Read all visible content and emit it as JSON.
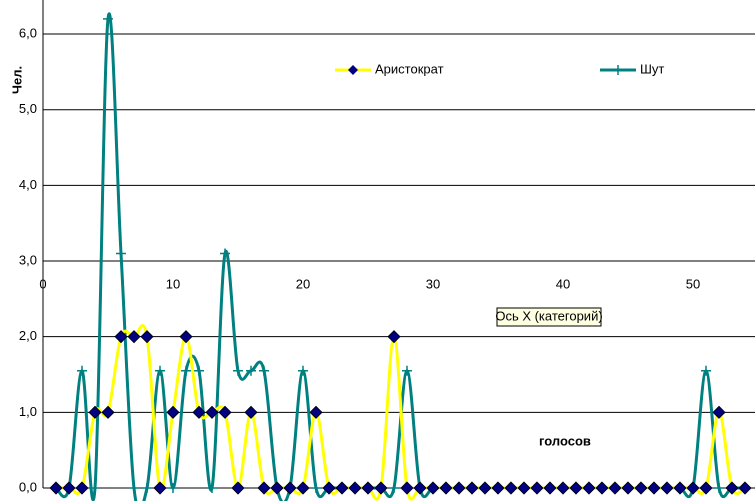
{
  "chart_data": {
    "type": "line",
    "y_label": "Чел.",
    "annotation": "голосов",
    "tooltip": "Ось X (категорий)",
    "x": [
      1,
      2,
      3,
      4,
      5,
      6,
      7,
      8,
      9,
      10,
      11,
      12,
      13,
      14,
      15,
      16,
      17,
      18,
      19,
      20,
      21,
      22,
      23,
      24,
      25,
      26,
      27,
      28,
      29,
      30,
      31,
      32,
      33,
      34,
      35,
      36,
      37,
      38,
      39,
      40,
      41,
      42,
      43,
      44,
      45,
      46,
      47,
      48,
      49,
      50,
      51,
      52,
      53,
      54
    ],
    "series": [
      {
        "name": "Аристократ",
        "color": "#ffff00",
        "marker_color": "#000080",
        "values": [
          0,
          0,
          0,
          1,
          1,
          2,
          2,
          2,
          0,
          1,
          2,
          1,
          1,
          1,
          0,
          1,
          0,
          0,
          0,
          0,
          1,
          0,
          0,
          0,
          0,
          0,
          2,
          0,
          0,
          0,
          0,
          0,
          0,
          0,
          0,
          0,
          0,
          0,
          0,
          0,
          0,
          0,
          0,
          0,
          0,
          0,
          0,
          0,
          0,
          0,
          0,
          1,
          0,
          0
        ]
      },
      {
        "name": "Шут",
        "color": "#008080",
        "marker_color": "#008080",
        "values": [
          0,
          0,
          1.55,
          0,
          6.2,
          3.1,
          0,
          0,
          1.55,
          0,
          1.55,
          1.55,
          0,
          3.1,
          1.55,
          1.55,
          1.55,
          0,
          0,
          1.55,
          0,
          0,
          0,
          0,
          0,
          0,
          0,
          1.55,
          0,
          0,
          0,
          0,
          0,
          0,
          0,
          0,
          0,
          0,
          0,
          0,
          0,
          0,
          0,
          0,
          0,
          0,
          0,
          0,
          0,
          0,
          1.55,
          0,
          0,
          0
        ]
      }
    ],
    "xlim": [
      0,
      55
    ],
    "xticks": [
      0,
      10,
      20,
      30,
      40,
      50
    ],
    "ylim": [
      0,
      6.45
    ],
    "yticks": [
      {
        "value": 0,
        "label": "0,0"
      },
      {
        "value": 1,
        "label": "1,0"
      },
      {
        "value": 2,
        "label": "2,0"
      },
      {
        "value": 3,
        "label": "3,0"
      },
      {
        "value": 4,
        "label": "4,0"
      },
      {
        "value": 5,
        "label": "5,0"
      },
      {
        "value": 6,
        "label": "6,0"
      }
    ],
    "grid": true,
    "smooth": true
  }
}
